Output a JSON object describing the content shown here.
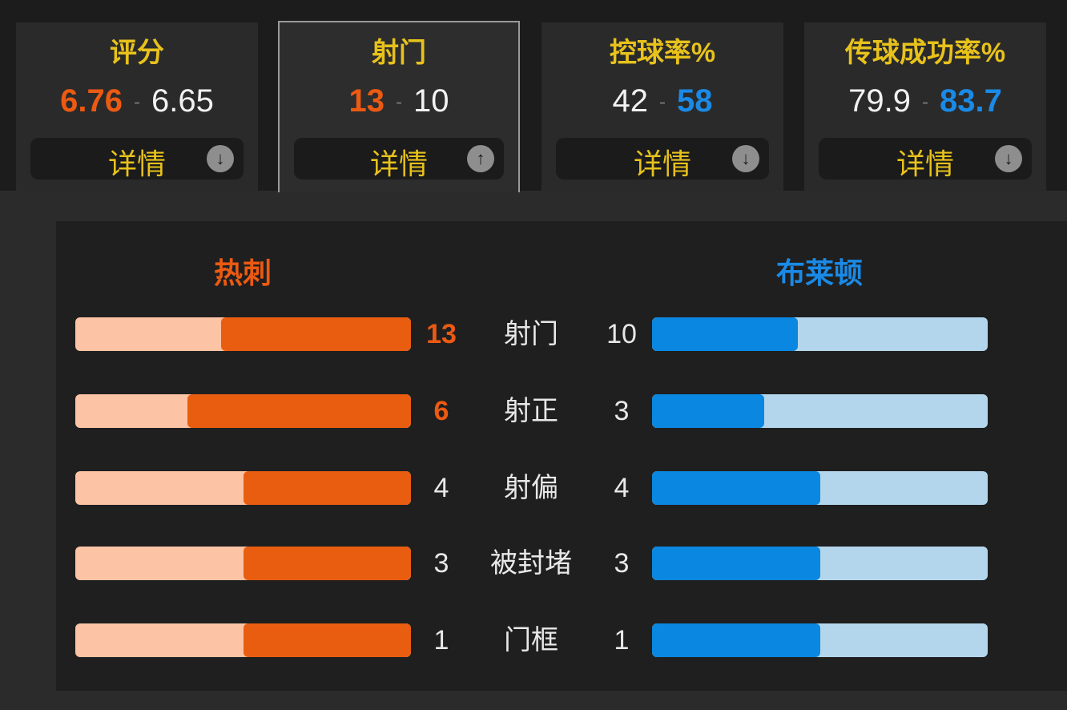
{
  "cards": [
    {
      "title": "评分",
      "home": "6.76",
      "away": "6.65",
      "sep": "-",
      "highlight": "home",
      "detail": "详情",
      "arrow": "down",
      "arrow_glyph": "🡇"
    },
    {
      "title": "射门",
      "home": "13",
      "away": "10",
      "sep": "-",
      "highlight": "home",
      "detail": "详情",
      "arrow": "up",
      "active": true
    },
    {
      "title": "控球率%",
      "home": "42",
      "away": "58",
      "sep": "-",
      "highlight": "away",
      "detail": "详情",
      "arrow": "down"
    },
    {
      "title": "传球成功率%",
      "home": "79.9",
      "away": "83.7",
      "sep": "-",
      "highlight": "away",
      "detail": "详情",
      "arrow": "down"
    }
  ],
  "teams": {
    "home": "热刺",
    "away": "布莱顿",
    "home_color": "#ec5a12",
    "away_color": "#1a8ae6"
  },
  "stats": [
    {
      "label": "射门",
      "home": 13,
      "away": 10,
      "highlight": "home"
    },
    {
      "label": "射正",
      "home": 6,
      "away": 3,
      "highlight": "home"
    },
    {
      "label": "射偏",
      "home": 4,
      "away": 4,
      "highlight": "none"
    },
    {
      "label": "被封堵",
      "home": 3,
      "away": 3,
      "highlight": "none"
    },
    {
      "label": "门框",
      "home": 1,
      "away": 1,
      "highlight": "none"
    }
  ]
}
